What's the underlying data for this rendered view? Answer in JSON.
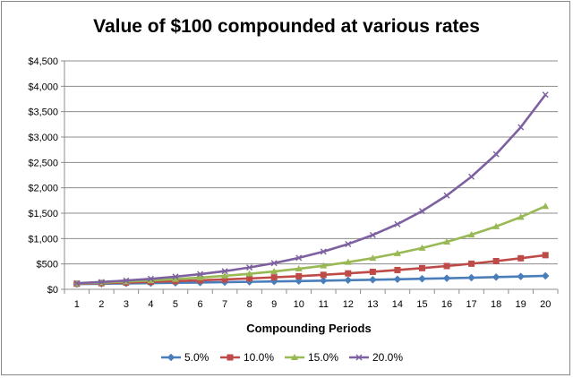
{
  "chart_data": {
    "type": "line",
    "title": "Value of $100 compounded at various rates",
    "xlabel": "Compounding Periods",
    "ylabel": "",
    "x": [
      1,
      2,
      3,
      4,
      5,
      6,
      7,
      8,
      9,
      10,
      11,
      12,
      13,
      14,
      15,
      16,
      17,
      18,
      19,
      20
    ],
    "ylim": [
      0,
      4500
    ],
    "yticks": [
      0,
      500,
      1000,
      1500,
      2000,
      2500,
      3000,
      3500,
      4000,
      4500
    ],
    "ytick_labels": [
      "$0",
      "$500",
      "$1,000",
      "$1,500",
      "$2,000",
      "$2,500",
      "$3,000",
      "$3,500",
      "$4,000",
      "$4,500"
    ],
    "grid": "horizontal",
    "legend": "bottom",
    "series": [
      {
        "name": "5.0%",
        "color": "#4A7EBB",
        "marker": "diamond",
        "values": [
          105,
          110,
          116,
          122,
          128,
          134,
          141,
          148,
          155,
          163,
          171,
          180,
          189,
          198,
          208,
          218,
          229,
          241,
          253,
          265
        ]
      },
      {
        "name": "10.0%",
        "color": "#BE4B48",
        "marker": "square",
        "values": [
          110,
          121,
          133,
          146,
          161,
          177,
          195,
          214,
          236,
          259,
          285,
          314,
          345,
          380,
          418,
          459,
          505,
          556,
          612,
          673
        ]
      },
      {
        "name": "15.0%",
        "color": "#98B954",
        "marker": "triangle",
        "values": [
          115,
          132,
          152,
          175,
          201,
          231,
          266,
          306,
          352,
          405,
          465,
          535,
          615,
          708,
          814,
          936,
          1076,
          1238,
          1423,
          1637
        ]
      },
      {
        "name": "20.0%",
        "color": "#7D60A0",
        "marker": "x",
        "values": [
          120,
          144,
          173,
          207,
          249,
          299,
          358,
          430,
          516,
          619,
          743,
          892,
          1070,
          1284,
          1541,
          1849,
          2219,
          2662,
          3195,
          3834
        ]
      }
    ]
  }
}
